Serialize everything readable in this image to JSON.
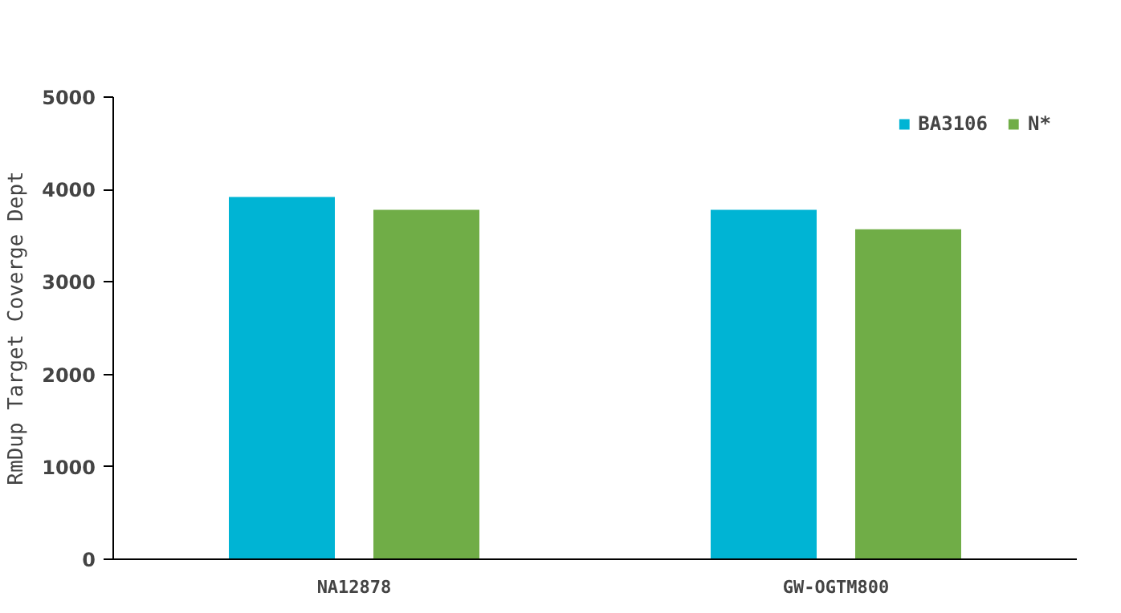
{
  "chart_data": {
    "type": "bar",
    "ylabel": "RmDup Target Coverge Dept",
    "categories": [
      "NA12878",
      "GW-OGTM800"
    ],
    "series": [
      {
        "name": "BA3106",
        "color": "#00b4d4",
        "values": [
          3920,
          3780
        ]
      },
      {
        "name": "N*",
        "color": "#70ad47",
        "values": [
          3780,
          3570
        ]
      }
    ],
    "ylim": [
      0,
      5000
    ],
    "yticks": [
      0,
      1000,
      2000,
      3000,
      4000,
      5000
    ],
    "grid": false,
    "legend": "top right"
  }
}
